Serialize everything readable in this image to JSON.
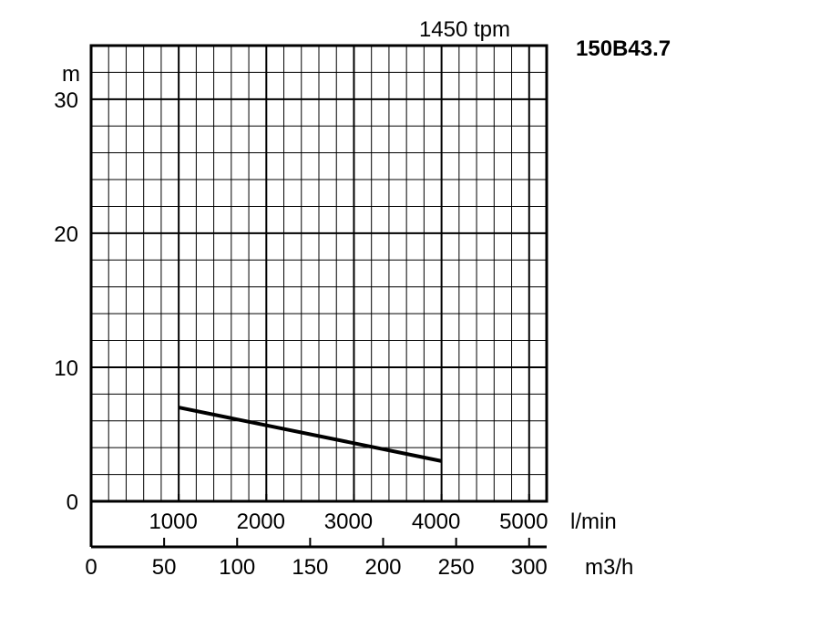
{
  "chart_data": {
    "type": "line",
    "speed_label": "1450 tpm",
    "model_label": "150B43.7",
    "y_unit": "m",
    "y_ticks": [
      "0",
      "10",
      "20",
      "30"
    ],
    "ylim": [
      0,
      34
    ],
    "x_primary_unit": "l/min",
    "x_primary_ticks": [
      "1000",
      "2000",
      "3000",
      "4000",
      "5000"
    ],
    "x_primary_lim": [
      0,
      5200
    ],
    "x_secondary_unit": "m3/h",
    "x_secondary_ticks": [
      "0",
      "50",
      "100",
      "150",
      "200",
      "250",
      "300"
    ],
    "x_secondary_lim": [
      0,
      312
    ],
    "grid": true,
    "series": [
      {
        "x": [
          1000,
          4000
        ],
        "y": [
          7.0,
          3.0
        ]
      }
    ]
  }
}
